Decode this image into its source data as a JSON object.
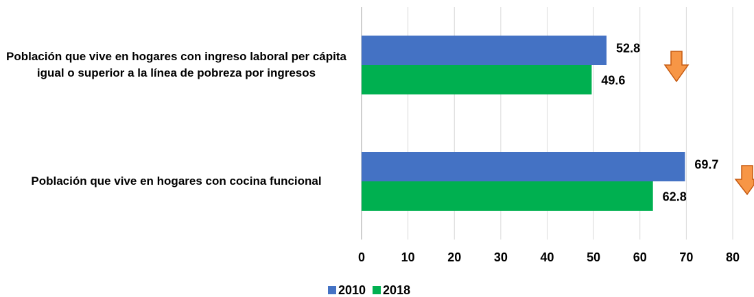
{
  "chart_data": {
    "type": "bar",
    "orientation": "horizontal",
    "categories": [
      "Población que vive en hogares con ingreso laboral per cápita igual o superior a la línea de pobreza por ingresos",
      "Población que vive en hogares con cocina funcional"
    ],
    "series": [
      {
        "name": "2010",
        "color": "#4472c4",
        "values": [
          52.8,
          69.7
        ]
      },
      {
        "name": "2018",
        "color": "#00b050",
        "values": [
          49.6,
          62.8
        ]
      }
    ],
    "xlim": [
      0,
      80
    ],
    "xticks": [
      0,
      10,
      20,
      30,
      40,
      50,
      60,
      70,
      80
    ],
    "grid": true,
    "legend": "bottom"
  }
}
